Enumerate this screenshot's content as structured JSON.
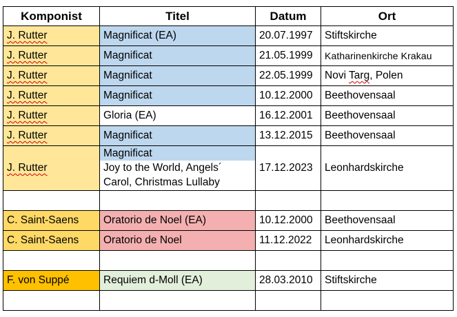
{
  "colors": {
    "rutter_yellow": "#ffe699",
    "magnificat_blue": "#bdd7ee",
    "saint_saens_yellow": "#ffd966",
    "oratorio_red": "#f4b0b0",
    "suppe_orange": "#ffc000",
    "requiem_green": "#e2efda"
  },
  "header": {
    "komponist": "Komponist",
    "titel": "Titel",
    "datum": "Datum",
    "ort": "Ort"
  },
  "rows": [
    {
      "komponist": "J. Rutter",
      "titel": "Magnificat (EA)",
      "datum": "20.07.1997",
      "ort": "Stiftskirche"
    },
    {
      "komponist": "J. Rutter",
      "titel": "Magnificat",
      "datum": "21.05.1999",
      "ort": "Katharinenkirche Krakau"
    },
    {
      "komponist": "J. Rutter",
      "titel": "Magnificat",
      "datum": "22.05.1999",
      "ort_a": "Novi ",
      "ort_b": "Targ",
      "ort_c": ", Polen"
    },
    {
      "komponist": "J. Rutter",
      "titel": "Magnificat",
      "datum": "10.12.2000",
      "ort": "Beethovensaal"
    },
    {
      "komponist": "J. Rutter",
      "titel": "Gloria (EA)",
      "datum": "16.12.2001",
      "ort": "Beethovensaal"
    },
    {
      "komponist": "J. Rutter",
      "titel": "Magnificat",
      "datum": "13.12.2015",
      "ort": "Beethovensaal"
    },
    {
      "komponist": "J. Rutter",
      "titel_1": "Magnificat",
      "titel_2": "Joy to the World, Angels´",
      "titel_3": "Carol, Christmas Lullaby",
      "datum": "17.12.2023",
      "ort": "Leonhardskirche"
    },
    {
      "komponist": "C. Saint-Saens",
      "titel": "Oratorio de Noel (EA)",
      "datum": "10.12.2000",
      "ort": "Beethovensaal"
    },
    {
      "komponist": "C. Saint-Saens",
      "titel": "Oratorio de Noel",
      "datum": "11.12.2022",
      "ort": "Leonhardskirche"
    },
    {
      "komponist": "F. von Suppé",
      "titel": "Requiem d-Moll (EA)",
      "datum": "28.03.2010",
      "ort": "Stiftskirche"
    }
  ]
}
